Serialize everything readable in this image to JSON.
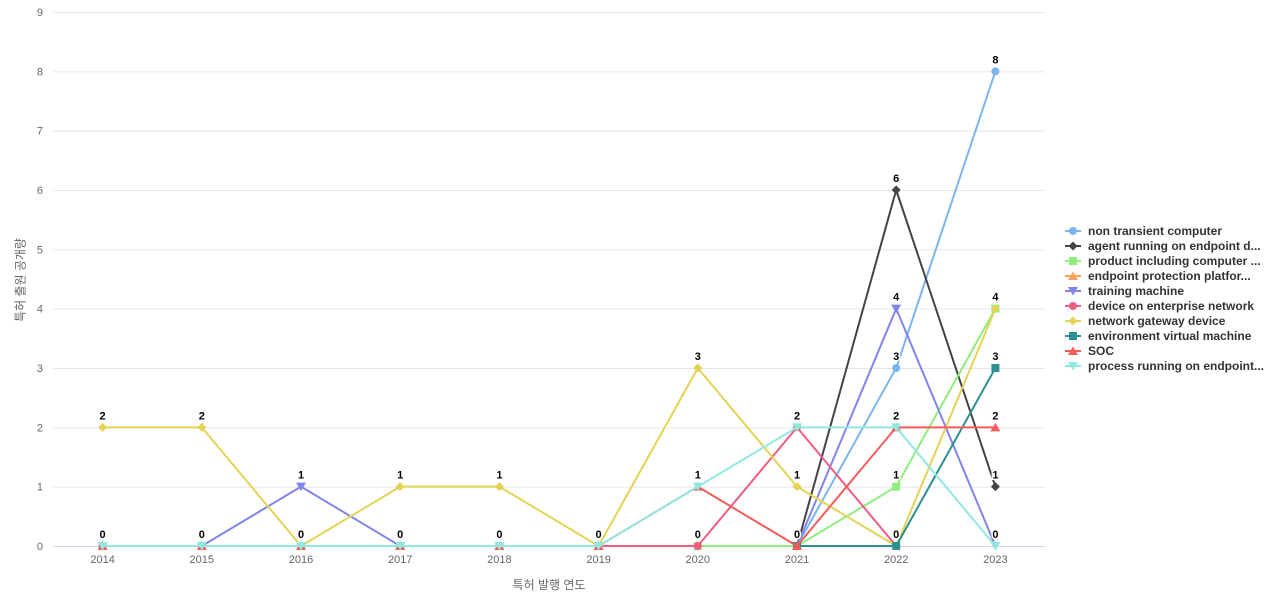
{
  "chart_data": {
    "type": "line",
    "xlabel": "특허 발행 연도",
    "ylabel": "특허 출원 공개량",
    "categories": [
      "2014",
      "2015",
      "2016",
      "2017",
      "2018",
      "2019",
      "2020",
      "2021",
      "2022",
      "2023"
    ],
    "yticks": [
      0,
      1,
      2,
      3,
      4,
      5,
      6,
      7,
      8,
      9
    ],
    "ylim": [
      0,
      9
    ],
    "grid": true,
    "legend_position": "right",
    "data_labels": true,
    "series": [
      {
        "name": "non transient computer",
        "color": "#7cb5ec",
        "marker": "circle",
        "values": [
          0,
          0,
          0,
          0,
          0,
          0,
          0,
          0,
          3,
          8
        ]
      },
      {
        "name": "agent running on endpoint d...",
        "color": "#434348",
        "marker": "diamond",
        "values": [
          0,
          0,
          0,
          0,
          0,
          0,
          0,
          0,
          6,
          1
        ]
      },
      {
        "name": "product including computer ...",
        "color": "#90ed7d",
        "marker": "square",
        "values": [
          0,
          0,
          0,
          0,
          0,
          0,
          0,
          0,
          1,
          4
        ]
      },
      {
        "name": "endpoint protection platfor...",
        "color": "#f7a35c",
        "marker": "triangle",
        "values": [
          null,
          null,
          null,
          null,
          null,
          null,
          null,
          0,
          null,
          null
        ]
      },
      {
        "name": "training machine",
        "color": "#8085e9",
        "marker": "triangle-down",
        "values": [
          0,
          0,
          1,
          0,
          0,
          0,
          null,
          0,
          4,
          0
        ]
      },
      {
        "name": "device on enterprise network",
        "color": "#f15c80",
        "marker": "circle",
        "values": [
          0,
          0,
          0,
          0,
          0,
          0,
          0,
          2,
          0,
          null
        ]
      },
      {
        "name": "network gateway device",
        "color": "#e4d354",
        "marker": "diamond",
        "values": [
          2,
          2,
          0,
          1,
          1,
          0,
          3,
          1,
          0,
          4
        ]
      },
      {
        "name": "environment virtual machine",
        "color": "#2b908f",
        "marker": "square",
        "values": [
          null,
          null,
          null,
          null,
          null,
          null,
          null,
          0,
          0,
          3
        ]
      },
      {
        "name": "SOC",
        "color": "#f45b5b",
        "marker": "triangle",
        "values": [
          0,
          0,
          0,
          0,
          0,
          0,
          1,
          0,
          2,
          2
        ]
      },
      {
        "name": "process running on endpoint...",
        "color": "#91e8e1",
        "marker": "triangle-down",
        "values": [
          0,
          0,
          0,
          0,
          0,
          0,
          1,
          2,
          2,
          0
        ]
      }
    ],
    "colors": {
      "gridline": "#e6e6e6",
      "axis_line": "#ccd6eb",
      "tick_label": "#666666",
      "axis_title": "#666666",
      "legend_text": "#333333",
      "data_label": "#000000"
    }
  }
}
